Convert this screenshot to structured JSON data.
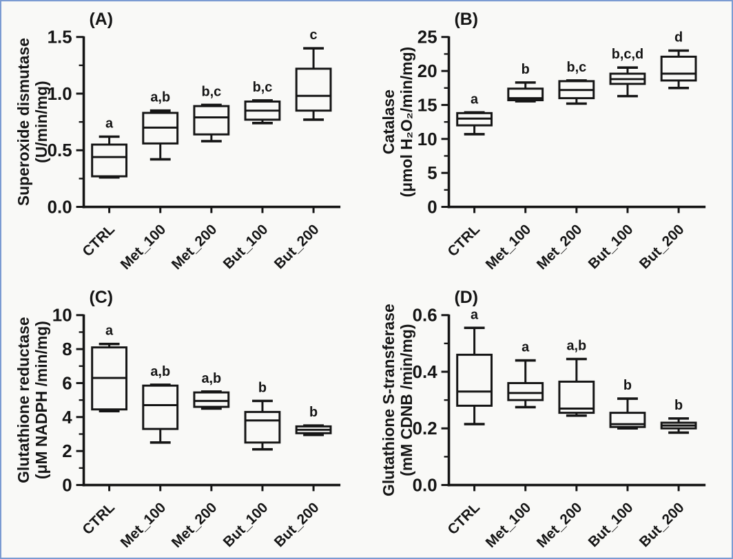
{
  "figure": {
    "background": "#f9f9f7",
    "ink_color": "#151515",
    "border_color": "#7b9bd2"
  },
  "chart_data": [
    {
      "type": "box",
      "panel_label": "(A)",
      "title": "Superoxide dismutase",
      "ylabel_line1": "Superoxide dismutase",
      "ylabel_line2": "(U/min/mg)",
      "ylim": [
        0,
        1.5
      ],
      "ytick_values": [
        0,
        0.5,
        1.0,
        1.5
      ],
      "ytick_labels": [
        "0.0",
        "0.5",
        "1.0",
        "1.5"
      ],
      "minor_step": 0.25,
      "grid": "off",
      "categories": [
        "CTRL",
        "Met_100",
        "Met_200",
        "But_100",
        "But_200"
      ],
      "series": [
        {
          "category": "CTRL",
          "low": 0.26,
          "q1": 0.27,
          "median": 0.44,
          "q3": 0.55,
          "high": 0.62,
          "sig": "a"
        },
        {
          "category": "Met_100",
          "low": 0.42,
          "q1": 0.56,
          "median": 0.7,
          "q3": 0.83,
          "high": 0.85,
          "sig": "a,b"
        },
        {
          "category": "Met_200",
          "low": 0.58,
          "q1": 0.64,
          "median": 0.79,
          "q3": 0.89,
          "high": 0.9,
          "sig": "b,c"
        },
        {
          "category": "But_100",
          "low": 0.74,
          "q1": 0.77,
          "median": 0.85,
          "q3": 0.93,
          "high": 0.94,
          "sig": "b,c"
        },
        {
          "category": "But_200",
          "low": 0.77,
          "q1": 0.85,
          "median": 0.98,
          "q3": 1.22,
          "high": 1.4,
          "sig": "c"
        }
      ]
    },
    {
      "type": "box",
      "panel_label": "(B)",
      "title": "Catalase",
      "ylabel_line1": "Catalase",
      "ylabel_line2": "(μmol H₂O₂/min/mg)",
      "ylim": [
        0,
        25
      ],
      "ytick_values": [
        0,
        5,
        10,
        15,
        20,
        25
      ],
      "ytick_labels": [
        "0",
        "5",
        "10",
        "15",
        "20",
        "25"
      ],
      "minor_step": 2.5,
      "grid": "off",
      "categories": [
        "CTRL",
        "Met_100",
        "Met_200",
        "But_100",
        "But_200"
      ],
      "series": [
        {
          "category": "CTRL",
          "low": 10.7,
          "q1": 12.0,
          "median": 13.0,
          "q3": 13.8,
          "high": 13.9,
          "sig": "a"
        },
        {
          "category": "Met_100",
          "low": 15.55,
          "q1": 15.7,
          "median": 16.0,
          "q3": 17.4,
          "high": 18.3,
          "sig": "b"
        },
        {
          "category": "Met_200",
          "low": 15.2,
          "q1": 16.0,
          "median": 17.2,
          "q3": 18.5,
          "high": 18.6,
          "sig": "b,c"
        },
        {
          "category": "But_100",
          "low": 16.3,
          "q1": 18.1,
          "median": 18.8,
          "q3": 19.6,
          "high": 20.5,
          "sig": "b,c,d"
        },
        {
          "category": "But_200",
          "low": 17.5,
          "q1": 18.6,
          "median": 19.6,
          "q3": 22.1,
          "high": 23.0,
          "sig": "d"
        }
      ]
    },
    {
      "type": "box",
      "panel_label": "(C)",
      "title": "Glutathione reductase",
      "ylabel_line1": "Glutathione reductase",
      "ylabel_line2": "(μM NADPH /min/mg)",
      "ylim": [
        0,
        10
      ],
      "ytick_values": [
        0,
        2,
        4,
        6,
        8,
        10
      ],
      "ytick_labels": [
        "0",
        "2",
        "4",
        "6",
        "8",
        "10"
      ],
      "minor_step": 1,
      "grid": "off",
      "categories": [
        "CTRL",
        "Met_100",
        "Met_200",
        "But_100",
        "But_200"
      ],
      "series": [
        {
          "category": "CTRL",
          "low": 4.35,
          "q1": 4.45,
          "median": 6.3,
          "q3": 8.1,
          "high": 8.3,
          "sig": "a"
        },
        {
          "category": "Met_100",
          "low": 2.5,
          "q1": 3.3,
          "median": 4.7,
          "q3": 5.85,
          "high": 5.9,
          "sig": "a,b"
        },
        {
          "category": "Met_200",
          "low": 4.5,
          "q1": 4.6,
          "median": 4.95,
          "q3": 5.45,
          "high": 5.5,
          "sig": "a,b"
        },
        {
          "category": "But_100",
          "low": 2.1,
          "q1": 2.5,
          "median": 3.8,
          "q3": 4.3,
          "high": 4.95,
          "sig": "b"
        },
        {
          "category": "But_200",
          "low": 2.95,
          "q1": 3.05,
          "median": 3.25,
          "q3": 3.45,
          "high": 3.5,
          "sig": "b"
        }
      ]
    },
    {
      "type": "box",
      "panel_label": "(D)",
      "title": "Glutathione S-transferase",
      "ylabel_line1": "Glutathione S-transferase",
      "ylabel_line2": "(mM CDNB /min/mg)",
      "ylim": [
        0,
        0.6
      ],
      "ytick_values": [
        0,
        0.2,
        0.4,
        0.6
      ],
      "ytick_labels": [
        "0.0",
        "0.2",
        "0.4",
        "0.6"
      ],
      "minor_step": 0.1,
      "grid": "off",
      "categories": [
        "CTRL",
        "Met_100",
        "Met_200",
        "But_100",
        "But_200"
      ],
      "series": [
        {
          "category": "CTRL",
          "low": 0.215,
          "q1": 0.28,
          "median": 0.33,
          "q3": 0.46,
          "high": 0.555,
          "sig": "a"
        },
        {
          "category": "Met_100",
          "low": 0.275,
          "q1": 0.3,
          "median": 0.325,
          "q3": 0.36,
          "high": 0.44,
          "sig": "a"
        },
        {
          "category": "Met_200",
          "low": 0.245,
          "q1": 0.255,
          "median": 0.27,
          "q3": 0.365,
          "high": 0.445,
          "sig": "a,b"
        },
        {
          "category": "But_100",
          "low": 0.2,
          "q1": 0.205,
          "median": 0.215,
          "q3": 0.255,
          "high": 0.305,
          "sig": "b"
        },
        {
          "category": "But_200",
          "low": 0.185,
          "q1": 0.2,
          "median": 0.21,
          "q3": 0.22,
          "high": 0.235,
          "sig": "b"
        }
      ]
    }
  ]
}
